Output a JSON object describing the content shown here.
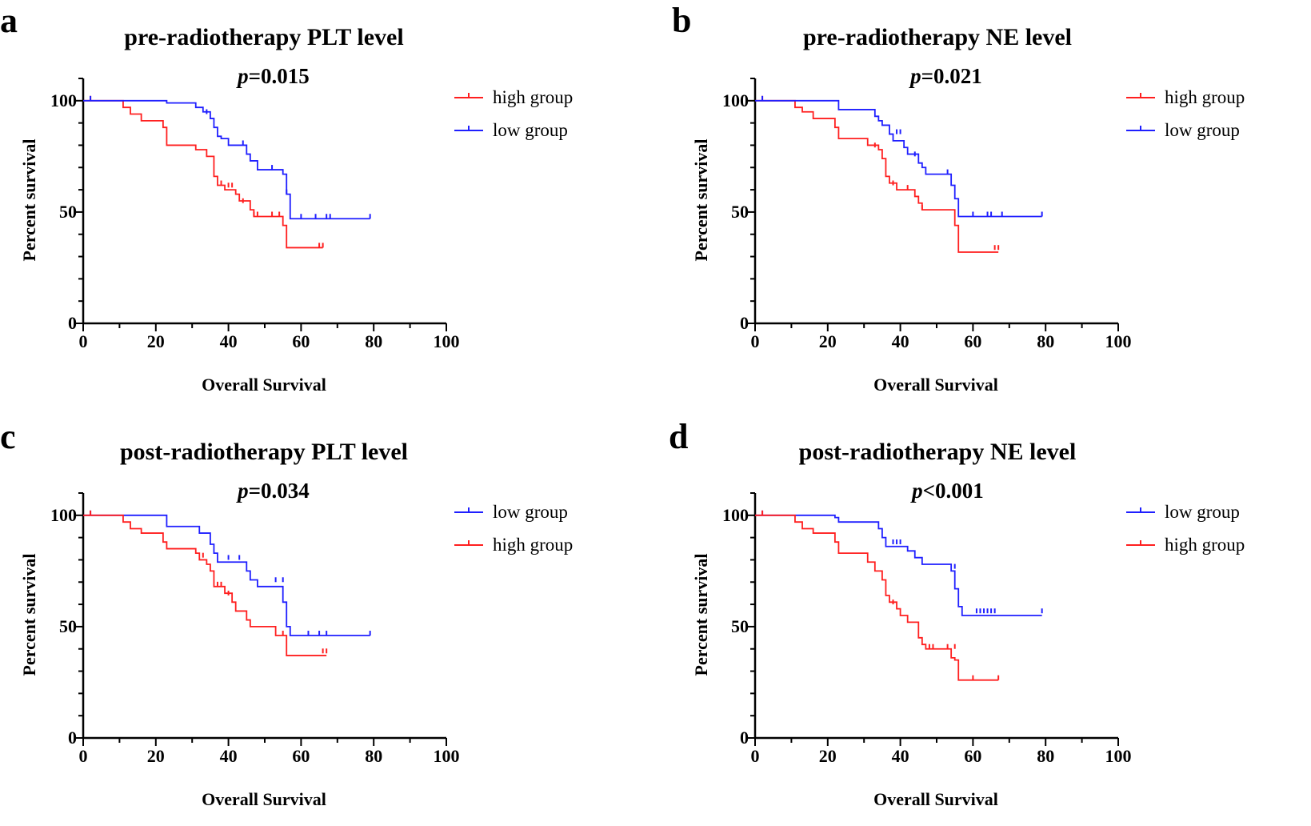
{
  "figure": {
    "width": 1639,
    "height": 1032
  },
  "colors": {
    "high": "#ff1f1f",
    "low": "#1f1fff",
    "axis": "#000000"
  },
  "chart_data": [
    {
      "panel": "a",
      "type": "line",
      "title": "pre-radiotherapy PLT level",
      "p_symbol": "p",
      "p_text": "=0.015",
      "xlabel": "Overall Survival",
      "ylabel": "Percent survival",
      "xlim": [
        0,
        100
      ],
      "ylim": [
        0,
        110
      ],
      "xticks": [
        "0",
        "20",
        "40",
        "60",
        "80",
        "100"
      ],
      "yticks": [
        "0",
        "50",
        "100"
      ],
      "legend": [
        "high group",
        "low group"
      ],
      "series": [
        {
          "name": "high group",
          "color": "#ff1f1f",
          "steps": [
            [
              0,
              100
            ],
            [
              11,
              97
            ],
            [
              13,
              94
            ],
            [
              16,
              91
            ],
            [
              22,
              88
            ],
            [
              23,
              80
            ],
            [
              31,
              78
            ],
            [
              34,
              75
            ],
            [
              36,
              66
            ],
            [
              37,
              62
            ],
            [
              39,
              60
            ],
            [
              42,
              58
            ],
            [
              43,
              55
            ],
            [
              46,
              51
            ],
            [
              47,
              48
            ],
            [
              55,
              44
            ],
            [
              56,
              34
            ],
            [
              66,
              34
            ]
          ],
          "censors": [
            [
              2,
              100
            ],
            [
              38,
              62
            ],
            [
              40,
              61
            ],
            [
              41,
              61
            ],
            [
              44,
              54
            ],
            [
              47,
              48
            ],
            [
              48,
              48
            ],
            [
              52,
              48
            ],
            [
              54,
              48
            ],
            [
              65,
              34
            ],
            [
              66,
              34
            ]
          ]
        },
        {
          "name": "low group",
          "color": "#1f1fff",
          "steps": [
            [
              0,
              100
            ],
            [
              23,
              99
            ],
            [
              31,
              97
            ],
            [
              33,
              95
            ],
            [
              35,
              92
            ],
            [
              36,
              88
            ],
            [
              37,
              84
            ],
            [
              38,
              83
            ],
            [
              40,
              80
            ],
            [
              45,
              76
            ],
            [
              46,
              73
            ],
            [
              48,
              69
            ],
            [
              53,
              69
            ],
            [
              55,
              67
            ],
            [
              56,
              58
            ],
            [
              57,
              47
            ],
            [
              79,
              47
            ]
          ],
          "censors": [
            [
              2,
              100
            ],
            [
              34,
              94
            ],
            [
              44,
              80
            ],
            [
              52,
              69
            ],
            [
              56,
              58
            ],
            [
              60,
              47
            ],
            [
              64,
              47
            ],
            [
              67,
              47
            ],
            [
              68,
              47
            ],
            [
              79,
              47
            ]
          ]
        }
      ]
    },
    {
      "panel": "b",
      "type": "line",
      "title": "pre-radiotherapy NE level",
      "p_symbol": "p",
      "p_text": "=0.021",
      "xlabel": "Overall Survival",
      "ylabel": "Percent survival",
      "xlim": [
        0,
        100
      ],
      "ylim": [
        0,
        110
      ],
      "xticks": [
        "0",
        "20",
        "40",
        "60",
        "80",
        "100"
      ],
      "yticks": [
        "0",
        "50",
        "100"
      ],
      "legend": [
        "high group",
        "low group"
      ],
      "series": [
        {
          "name": "high group",
          "color": "#ff1f1f",
          "steps": [
            [
              0,
              100
            ],
            [
              11,
              97
            ],
            [
              13,
              95
            ],
            [
              16,
              92
            ],
            [
              22,
              88
            ],
            [
              23,
              83
            ],
            [
              31,
              80
            ],
            [
              34,
              78
            ],
            [
              35,
              74
            ],
            [
              36,
              66
            ],
            [
              37,
              63
            ],
            [
              39,
              60
            ],
            [
              44,
              57
            ],
            [
              45,
              54
            ],
            [
              46,
              51
            ],
            [
              55,
              44
            ],
            [
              56,
              32
            ],
            [
              67,
              32
            ]
          ],
          "censors": [
            [
              2,
              100
            ],
            [
              33,
              79
            ],
            [
              38,
              62
            ],
            [
              42,
              60
            ],
            [
              46,
              51
            ],
            [
              66,
              33
            ],
            [
              67,
              33
            ]
          ]
        },
        {
          "name": "low group",
          "color": "#1f1fff",
          "steps": [
            [
              0,
              100
            ],
            [
              23,
              96
            ],
            [
              33,
              93
            ],
            [
              34,
              91
            ],
            [
              35,
              89
            ],
            [
              37,
              85
            ],
            [
              38,
              82
            ],
            [
              41,
              79
            ],
            [
              42,
              76
            ],
            [
              45,
              72
            ],
            [
              46,
              70
            ],
            [
              47,
              67
            ],
            [
              54,
              62
            ],
            [
              55,
              56
            ],
            [
              56,
              48
            ],
            [
              79,
              48
            ]
          ],
          "censors": [
            [
              2,
              100
            ],
            [
              39,
              85
            ],
            [
              40,
              85
            ],
            [
              44,
              75
            ],
            [
              53,
              67
            ],
            [
              60,
              48
            ],
            [
              64,
              48
            ],
            [
              65,
              48
            ],
            [
              68,
              48
            ],
            [
              79,
              48
            ]
          ]
        }
      ]
    },
    {
      "panel": "c",
      "type": "line",
      "title": "post-radiotherapy PLT level",
      "p_symbol": "p",
      "p_text": "=0.034",
      "xlabel": "Overall Survival",
      "ylabel": "Percent survival",
      "xlim": [
        0,
        100
      ],
      "ylim": [
        0,
        110
      ],
      "xticks": [
        "0",
        "20",
        "40",
        "60",
        "80",
        "100"
      ],
      "yticks": [
        "0",
        "50",
        "100"
      ],
      "legend": [
        "low group",
        "high group"
      ],
      "series": [
        {
          "name": "low group",
          "color": "#1f1fff",
          "steps": [
            [
              0,
              100
            ],
            [
              23,
              95
            ],
            [
              32,
              92
            ],
            [
              35,
              87
            ],
            [
              36,
              83
            ],
            [
              37,
              79
            ],
            [
              45,
              75
            ],
            [
              46,
              71
            ],
            [
              48,
              68
            ],
            [
              55,
              61
            ],
            [
              56,
              50
            ],
            [
              57,
              46
            ],
            [
              79,
              46
            ]
          ],
          "censors": [
            [
              2,
              100
            ],
            [
              40,
              80
            ],
            [
              43,
              80
            ],
            [
              53,
              70
            ],
            [
              55,
              70
            ],
            [
              62,
              46
            ],
            [
              65,
              46
            ],
            [
              67,
              46
            ],
            [
              79,
              46
            ]
          ]
        },
        {
          "name": "high group",
          "color": "#ff1f1f",
          "steps": [
            [
              0,
              100
            ],
            [
              11,
              97
            ],
            [
              13,
              94
            ],
            [
              16,
              92
            ],
            [
              22,
              88
            ],
            [
              23,
              85
            ],
            [
              31,
              83
            ],
            [
              32,
              80
            ],
            [
              34,
              78
            ],
            [
              35,
              75
            ],
            [
              36,
              68
            ],
            [
              39,
              65
            ],
            [
              41,
              61
            ],
            [
              42,
              57
            ],
            [
              45,
              53
            ],
            [
              46,
              50
            ],
            [
              53,
              46
            ],
            [
              56,
              37
            ],
            [
              67,
              37
            ]
          ],
          "censors": [
            [
              2,
              100
            ],
            [
              33,
              81
            ],
            [
              37,
              68
            ],
            [
              38,
              68
            ],
            [
              40,
              64
            ],
            [
              55,
              46
            ],
            [
              66,
              38
            ],
            [
              67,
              38
            ]
          ]
        }
      ]
    },
    {
      "panel": "d",
      "type": "line",
      "title": "post-radiotherapy NE level",
      "p_symbol": "p",
      "p_text": "<0.001",
      "xlabel": "Overall Survival",
      "ylabel": "Percent survival",
      "xlim": [
        0,
        100
      ],
      "ylim": [
        0,
        110
      ],
      "xticks": [
        "0",
        "20",
        "40",
        "60",
        "80",
        "100"
      ],
      "yticks": [
        "0",
        "50",
        "100"
      ],
      "legend": [
        "low group",
        "high group"
      ],
      "series": [
        {
          "name": "low group",
          "color": "#1f1fff",
          "steps": [
            [
              0,
              100
            ],
            [
              22,
              99
            ],
            [
              23,
              97
            ],
            [
              34,
              94
            ],
            [
              35,
              90
            ],
            [
              36,
              86
            ],
            [
              42,
              84
            ],
            [
              44,
              81
            ],
            [
              46,
              78
            ],
            [
              54,
              75
            ],
            [
              55,
              67
            ],
            [
              56,
              59
            ],
            [
              57,
              55
            ],
            [
              79,
              55
            ]
          ],
          "censors": [
            [
              2,
              100
            ],
            [
              38,
              87
            ],
            [
              39,
              87
            ],
            [
              40,
              87
            ],
            [
              55,
              76
            ],
            [
              61,
              56
            ],
            [
              62,
              56
            ],
            [
              63,
              56
            ],
            [
              64,
              56
            ],
            [
              65,
              56
            ],
            [
              66,
              56
            ],
            [
              79,
              56
            ]
          ]
        },
        {
          "name": "high group",
          "color": "#ff1f1f",
          "steps": [
            [
              0,
              100
            ],
            [
              11,
              97
            ],
            [
              13,
              94
            ],
            [
              16,
              92
            ],
            [
              22,
              88
            ],
            [
              23,
              83
            ],
            [
              31,
              79
            ],
            [
              33,
              75
            ],
            [
              35,
              71
            ],
            [
              36,
              64
            ],
            [
              37,
              61
            ],
            [
              39,
              58
            ],
            [
              40,
              55
            ],
            [
              42,
              52
            ],
            [
              45,
              45
            ],
            [
              46,
              42
            ],
            [
              47,
              40
            ],
            [
              54,
              36
            ],
            [
              55,
              35
            ],
            [
              56,
              26
            ],
            [
              67,
              26
            ]
          ],
          "censors": [
            [
              2,
              100
            ],
            [
              38,
              60
            ],
            [
              48,
              40
            ],
            [
              49,
              40
            ],
            [
              53,
              40
            ],
            [
              55,
              40
            ],
            [
              60,
              26
            ],
            [
              67,
              26
            ]
          ]
        }
      ]
    }
  ]
}
